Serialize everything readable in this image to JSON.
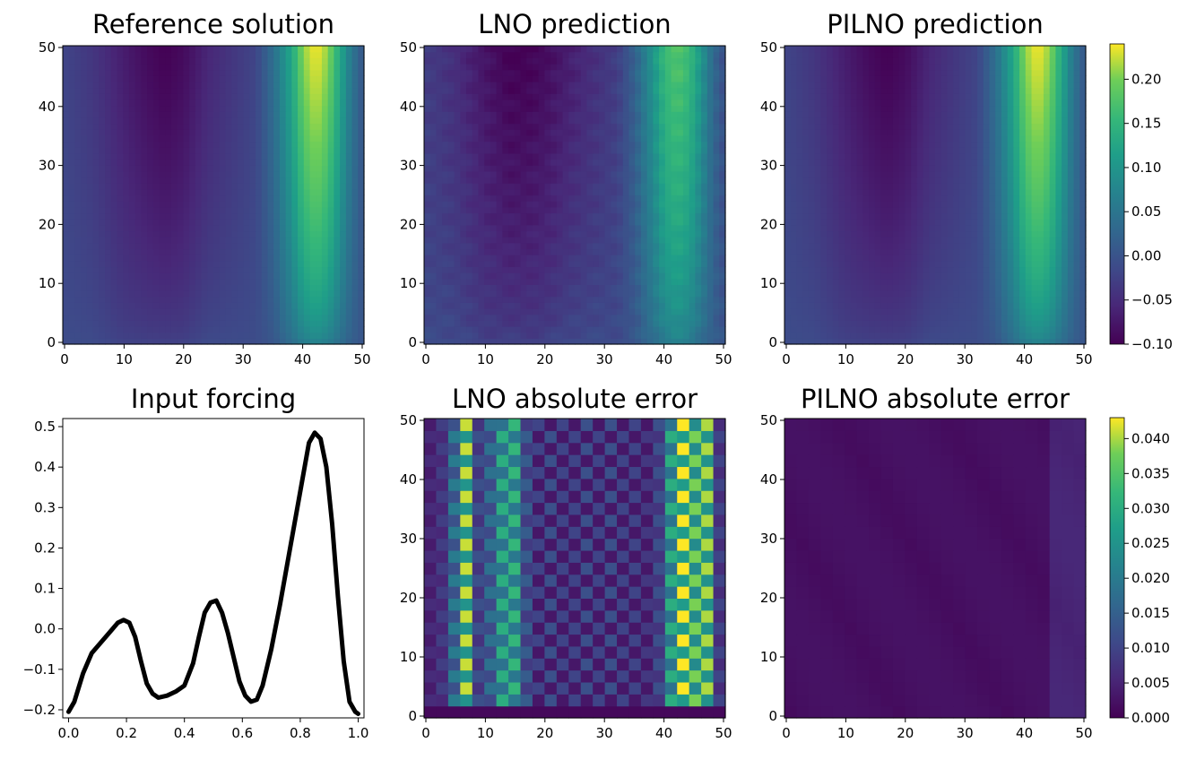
{
  "chart_data": [
    {
      "type": "heatmap",
      "title": "Reference solution",
      "xlim": [
        0,
        50
      ],
      "ylim": [
        0,
        50
      ],
      "xticks": [
        "0",
        "10",
        "20",
        "30",
        "40",
        "50"
      ],
      "yticks": [
        "0",
        "10",
        "20",
        "30",
        "40",
        "50"
      ],
      "colorscale": "viridis",
      "vmin": -0.1,
      "vmax": 0.24,
      "field_profile_x": [
        0,
        5,
        10,
        14,
        17,
        20,
        24,
        28,
        32,
        35,
        38,
        40,
        42,
        44,
        46,
        48,
        50
      ],
      "field_profile_top": [
        -0.02,
        -0.04,
        -0.07,
        -0.09,
        -0.1,
        -0.09,
        -0.06,
        -0.04,
        -0.02,
        0.04,
        0.13,
        0.21,
        0.24,
        0.21,
        0.13,
        0.05,
        0.0
      ],
      "field_profile_bottom": [
        -0.01,
        -0.01,
        -0.02,
        -0.02,
        -0.02,
        -0.02,
        -0.01,
        -0.01,
        -0.01,
        0.0,
        0.03,
        0.05,
        0.06,
        0.05,
        0.03,
        0.01,
        0.0
      ]
    },
    {
      "type": "heatmap",
      "title": "LNO prediction",
      "xlim": [
        0,
        50
      ],
      "ylim": [
        0,
        50
      ],
      "xticks": [
        "0",
        "10",
        "20",
        "30",
        "40",
        "50"
      ],
      "yticks": [
        "0",
        "10",
        "20",
        "30",
        "40",
        "50"
      ],
      "colorscale": "viridis",
      "vmin": -0.1,
      "vmax": 0.24,
      "field_profile_x": [
        0,
        5,
        10,
        14,
        17,
        20,
        24,
        28,
        32,
        35,
        38,
        40,
        42,
        44,
        46,
        48,
        50
      ],
      "field_profile_top": [
        -0.03,
        -0.05,
        -0.08,
        -0.1,
        -0.1,
        -0.09,
        -0.07,
        -0.05,
        -0.03,
        0.02,
        0.1,
        0.16,
        0.18,
        0.16,
        0.1,
        0.03,
        -0.01
      ],
      "field_profile_bottom": [
        -0.01,
        -0.01,
        -0.02,
        -0.02,
        -0.02,
        -0.02,
        -0.01,
        -0.01,
        -0.01,
        0.0,
        0.03,
        0.05,
        0.06,
        0.05,
        0.03,
        0.01,
        0.0
      ]
    },
    {
      "type": "heatmap",
      "title": "PILNO prediction",
      "xlim": [
        0,
        50
      ],
      "ylim": [
        0,
        50
      ],
      "xticks": [
        "0",
        "10",
        "20",
        "30",
        "40",
        "50"
      ],
      "yticks": [
        "0",
        "10",
        "20",
        "30",
        "40",
        "50"
      ],
      "colorscale": "viridis",
      "vmin": -0.1,
      "vmax": 0.24,
      "colorbar_ticks": [
        "0.20",
        "0.15",
        "0.10",
        "0.05",
        "0.00",
        "−0.05",
        "−0.10"
      ],
      "field_profile_x": [
        0,
        5,
        10,
        14,
        17,
        20,
        24,
        28,
        32,
        35,
        38,
        40,
        42,
        44,
        46,
        48,
        50
      ],
      "field_profile_top": [
        -0.02,
        -0.04,
        -0.07,
        -0.09,
        -0.1,
        -0.09,
        -0.06,
        -0.04,
        -0.02,
        0.04,
        0.13,
        0.21,
        0.24,
        0.21,
        0.13,
        0.05,
        0.0
      ],
      "field_profile_bottom": [
        -0.01,
        -0.01,
        -0.02,
        -0.02,
        -0.02,
        -0.02,
        -0.01,
        -0.01,
        -0.01,
        0.0,
        0.03,
        0.05,
        0.06,
        0.05,
        0.03,
        0.01,
        0.0
      ]
    },
    {
      "type": "line",
      "title": "Input forcing",
      "xlim": [
        -0.02,
        1.02
      ],
      "ylim": [
        -0.22,
        0.52
      ],
      "xticks": [
        "0.0",
        "0.2",
        "0.4",
        "0.6",
        "0.8",
        "1.0"
      ],
      "yticks": [
        "0.5",
        "0.4",
        "0.3",
        "0.2",
        "0.1",
        "0.0",
        "−0.1",
        "−0.2"
      ],
      "line_color": "#000000",
      "x": [
        0.0,
        0.02,
        0.05,
        0.08,
        0.11,
        0.14,
        0.17,
        0.19,
        0.21,
        0.23,
        0.25,
        0.27,
        0.29,
        0.31,
        0.34,
        0.37,
        0.4,
        0.43,
        0.45,
        0.47,
        0.49,
        0.51,
        0.53,
        0.55,
        0.57,
        0.59,
        0.61,
        0.63,
        0.65,
        0.67,
        0.7,
        0.73,
        0.76,
        0.79,
        0.81,
        0.83,
        0.85,
        0.87,
        0.89,
        0.91,
        0.93,
        0.95,
        0.97,
        0.99,
        1.0
      ],
      "y": [
        -0.205,
        -0.18,
        -0.11,
        -0.06,
        -0.035,
        -0.01,
        0.015,
        0.022,
        0.015,
        -0.02,
        -0.08,
        -0.135,
        -0.16,
        -0.17,
        -0.165,
        -0.155,
        -0.14,
        -0.085,
        -0.02,
        0.04,
        0.065,
        0.07,
        0.04,
        -0.01,
        -0.07,
        -0.13,
        -0.165,
        -0.18,
        -0.175,
        -0.14,
        -0.05,
        0.06,
        0.18,
        0.3,
        0.38,
        0.46,
        0.485,
        0.47,
        0.4,
        0.26,
        0.08,
        -0.08,
        -0.18,
        -0.205,
        -0.21
      ]
    },
    {
      "type": "heatmap",
      "title": "LNO absolute error",
      "xlim": [
        0,
        50
      ],
      "ylim": [
        0,
        50
      ],
      "xticks": [
        "0",
        "10",
        "20",
        "30",
        "40",
        "50"
      ],
      "yticks": [
        "0",
        "10",
        "20",
        "30",
        "40",
        "50"
      ],
      "colorscale": "viridis",
      "vmin": 0.0,
      "vmax": 0.043,
      "cell_grid": [
        25,
        25
      ],
      "column_peak_profile": [
        0.006,
        0.009,
        0.02,
        0.041,
        0.012,
        0.018,
        0.03,
        0.032,
        0.014,
        0.01,
        0.012,
        0.01,
        0.01,
        0.012,
        0.01,
        0.012,
        0.01,
        0.01,
        0.008,
        0.012,
        0.03,
        0.043,
        0.038,
        0.04,
        0.01
      ]
    },
    {
      "type": "heatmap",
      "title": "PILNO absolute error",
      "xlim": [
        0,
        50
      ],
      "ylim": [
        0,
        50
      ],
      "xticks": [
        "0",
        "10",
        "20",
        "30",
        "40",
        "50"
      ],
      "yticks": [
        "0",
        "10",
        "20",
        "30",
        "40",
        "50"
      ],
      "colorscale": "viridis",
      "vmin": 0.0,
      "vmax": 0.043,
      "colorbar_ticks": [
        "0.040",
        "0.035",
        "0.030",
        "0.025",
        "0.020",
        "0.015",
        "0.010",
        "0.005",
        "0.000"
      ],
      "typical_value": 0.002
    }
  ]
}
